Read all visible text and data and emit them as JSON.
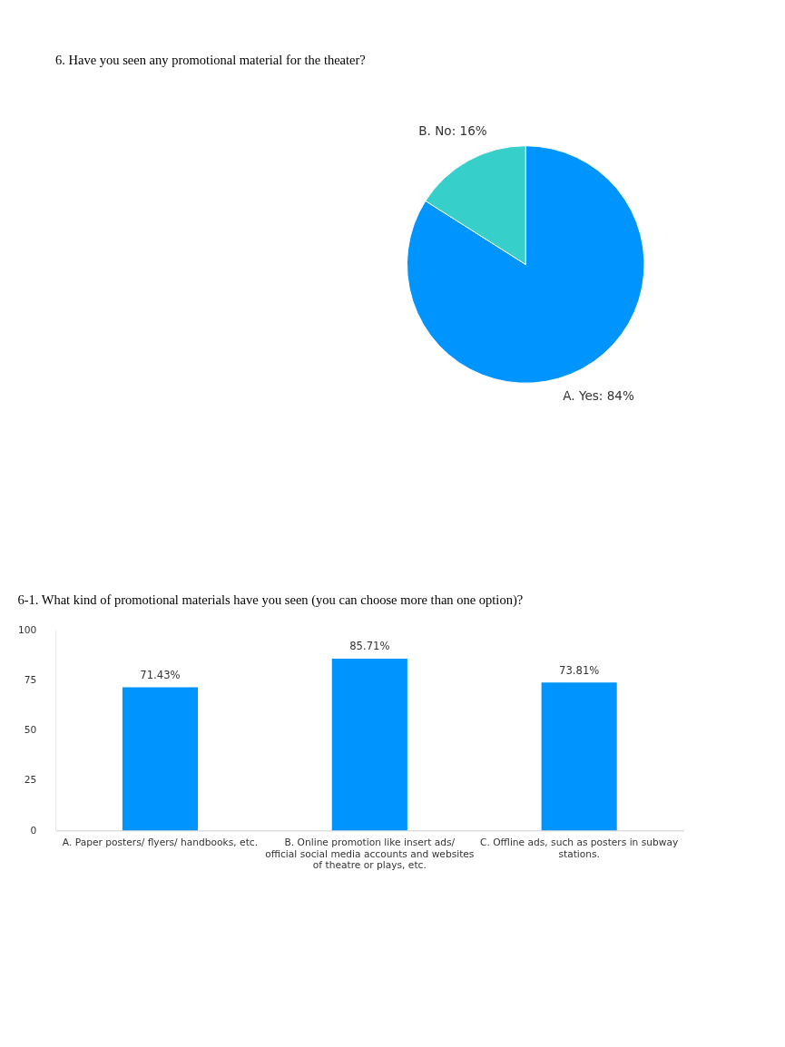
{
  "chart_data": [
    {
      "type": "pie",
      "title": "6. Have you seen any promotional material for the theater?",
      "categories": [
        "A. Yes",
        "B. No"
      ],
      "values": [
        84,
        16
      ],
      "colors": [
        "#0094ff",
        "#36cfc9"
      ],
      "value_labels": [
        "84%",
        "16%"
      ]
    },
    {
      "type": "bar",
      "title": "6-1. What kind of promotional materials have you seen (you can choose more than one option)?",
      "categories": [
        "A. Paper posters/ flyers/ handbooks, etc.",
        "B. Online promotion like insert ads/ official social media accounts and websites of theatre or plays, etc.",
        "C. Offline ads, such as posters in subway stations."
      ],
      "series": [
        {
          "color": "#0094ff",
          "values": [
            71.43,
            85.71,
            73.81
          ],
          "value_labels": [
            "71.43%",
            "85.71%",
            "73.81%"
          ]
        }
      ],
      "ylim": [
        0,
        100
      ],
      "yticks": [
        0,
        25,
        50,
        75,
        100
      ],
      "grid": false
    }
  ]
}
